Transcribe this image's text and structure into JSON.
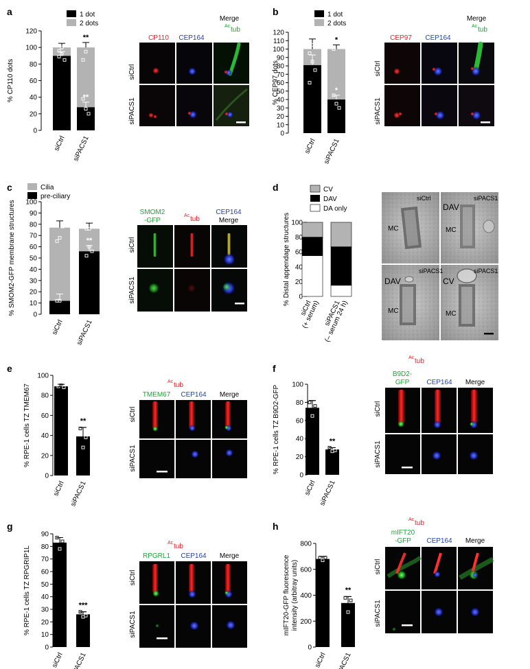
{
  "colors": {
    "red": "#e8202a",
    "blue": "#27439e",
    "green": "#1aa53a",
    "black": "#000000",
    "gray": "#b3b3b3",
    "em_bg": "#a9a9a9"
  },
  "panels": {
    "a": {
      "letter": "a",
      "legend": [
        "1 dot",
        "2 dots"
      ],
      "ylabel": "% CP110 dots",
      "yticks": [
        "0",
        "20",
        "40",
        "60",
        "80",
        "100",
        "120"
      ],
      "categories": [
        "siCtrl",
        "siPACS1"
      ],
      "sig": [
        "**",
        "**"
      ],
      "stain_labels": {
        "c1": "CP110",
        "c2": "CEP164",
        "c3_title": "Merge",
        "c3_sup": "Ac",
        "c3_rest": "tub"
      },
      "row_labels": [
        "siCtrl",
        "siPACS1"
      ]
    },
    "b": {
      "letter": "b",
      "legend": [
        "1 dot",
        "2 dots"
      ],
      "ylabel": "% CEP97 dots",
      "yticks": [
        "0",
        "10",
        "20",
        "30",
        "40",
        "50",
        "60",
        "70",
        "80",
        "90",
        "100",
        "110",
        "120"
      ],
      "categories": [
        "siCtrl",
        "siPACS1"
      ],
      "sig": [
        "*",
        "*"
      ],
      "stain_labels": {
        "c1": "CEP97",
        "c2": "CEP164",
        "c3_title": "Merge",
        "c3_sup": "Ac",
        "c3_rest": "tub"
      },
      "row_labels": [
        "siCtrl",
        "siPACS1"
      ]
    },
    "c": {
      "letter": "c",
      "legend": [
        "Cilia",
        "pre-ciliary"
      ],
      "ylabel": "% SMOM2-GFP membrane structures",
      "yticks": [
        "0",
        "10",
        "20",
        "30",
        "40",
        "50",
        "60",
        "70",
        "80",
        "90",
        "100"
      ],
      "categories": [
        "siCtrl",
        "siPACS1"
      ],
      "sig": [
        "**"
      ],
      "stain_labels": {
        "c1a": "SMOM2",
        "c1b": "-GFP",
        "c2_sup": "Ac",
        "c2_rest": "tub",
        "c3_title": "CEP164",
        "c3_sub": "Merge"
      },
      "row_labels": [
        "siCtrl",
        "siPACS1"
      ]
    },
    "d": {
      "letter": "d",
      "legend": [
        "CV",
        "DAV",
        "DA only"
      ],
      "ylabel": "% Distal appendage structures",
      "yticks": [
        "0",
        "20",
        "40",
        "60",
        "80",
        "100"
      ],
      "categories": [
        "siCtrl (+ serum)",
        "siPACS1 (– serum 24 h)"
      ],
      "cat_lines": [
        [
          "siCtrl",
          "(+ serum)"
        ],
        [
          "siPACS1",
          "(– serum 24 h)"
        ]
      ],
      "em_labels": {
        "tl": "siCtrl",
        "tr": "siPACS1",
        "bl": "siPACS1",
        "br": "siPACS1",
        "mc": "MC",
        "dav": "DAV",
        "cv": "CV"
      }
    },
    "e": {
      "letter": "e",
      "ylabel": "% RPE-1 cells TZ TMEM67",
      "yticks": [
        "0",
        "20",
        "40",
        "60",
        "80",
        "100"
      ],
      "categories": [
        "siCtrl",
        "siPACS1"
      ],
      "sig": [
        "**"
      ],
      "stain_labels": {
        "top_sup": "Ac",
        "top_rest": "tub",
        "c1": "TMEM67",
        "c2": "CEP164",
        "c3": "Merge"
      },
      "row_labels": [
        "siCtrl",
        "siPACS1"
      ]
    },
    "f": {
      "letter": "f",
      "ylabel": "% RPE-1 cells TZ B9D2-GFP",
      "yticks": [
        "0",
        "20",
        "40",
        "60",
        "80",
        "100"
      ],
      "categories": [
        "siCtrl",
        "siPACS1"
      ],
      "sig": [
        "**"
      ],
      "stain_labels": {
        "top_sup": "Ac",
        "top_rest": "tub",
        "c1a": "B9D2-",
        "c1b": "GFP",
        "c2": "CEP164",
        "c3": "Merge"
      },
      "row_labels": [
        "siCtrl",
        "siPACS1"
      ]
    },
    "g": {
      "letter": "g",
      "ylabel": "% RPE-1 cells TZ RPGRIP1L",
      "yticks": [
        "0",
        "10",
        "20",
        "30",
        "40",
        "50",
        "60",
        "70",
        "80",
        "90"
      ],
      "categories": [
        "siCtrl",
        "siPACS1"
      ],
      "sig": [
        "***"
      ],
      "stain_labels": {
        "top_sup": "Ac",
        "top_rest": "tub",
        "c1": "RPGRL1",
        "c2": "CEP164",
        "c3": "Merge"
      },
      "row_labels": [
        "siCtrl",
        "siPACS1"
      ]
    },
    "h": {
      "letter": "h",
      "ylabel": "mIFT20-GFP fluorescence intensity (arbitray units)",
      "ylabel_lines": [
        "mIFT20-GFP fluorescence",
        "intensity (arbitray units)"
      ],
      "yticks": [
        "0",
        "200",
        "400",
        "600",
        "800"
      ],
      "categories": [
        "siCtrl",
        "siPACS1"
      ],
      "sig": [
        "**"
      ],
      "stain_labels": {
        "top_sup": "Ac",
        "top_rest": "tub",
        "c1a": "mIFT20",
        "c1b": "-GFP",
        "c2": "CEP164",
        "c3": "Merge"
      },
      "row_labels": [
        "siCtrl",
        "siPACS1"
      ]
    }
  },
  "chart_data": [
    {
      "panel": "a",
      "type": "bar",
      "stacked": true,
      "categories": [
        "siCtrl",
        "siPACS1"
      ],
      "series": [
        {
          "name": "1 dot",
          "values": [
            90,
            28
          ]
        },
        {
          "name": "2 dots",
          "values": [
            10,
            72
          ]
        }
      ],
      "ylabel": "% CP110 dots",
      "ylim": [
        0,
        120
      ]
    },
    {
      "panel": "b",
      "type": "bar",
      "stacked": true,
      "categories": [
        "siCtrl",
        "siPACS1"
      ],
      "series": [
        {
          "name": "1 dot",
          "values": [
            81,
            40
          ]
        },
        {
          "name": "2 dots",
          "values": [
            19,
            60
          ]
        }
      ],
      "ylabel": "% CEP97 dots",
      "ylim": [
        0,
        120
      ]
    },
    {
      "panel": "c",
      "type": "bar",
      "stacked": true,
      "categories": [
        "siCtrl",
        "siPACS1"
      ],
      "series": [
        {
          "name": "pre-ciliary",
          "values": [
            12,
            56
          ]
        },
        {
          "name": "Cilia",
          "values": [
            65,
            20
          ]
        }
      ],
      "ylabel": "% SMOM2-GFP membrane structures",
      "ylim": [
        0,
        100
      ]
    },
    {
      "panel": "d",
      "type": "bar",
      "stacked": true,
      "categories": [
        "siCtrl (+ serum)",
        "siPACS1 (– serum 24 h)"
      ],
      "series": [
        {
          "name": "DA only",
          "values": [
            55,
            15
          ]
        },
        {
          "name": "DAV",
          "values": [
            25,
            52
          ]
        },
        {
          "name": "CV",
          "values": [
            20,
            33
          ]
        }
      ],
      "ylabel": "% Distal appendage structures",
      "ylim": [
        0,
        100
      ]
    },
    {
      "panel": "e",
      "type": "bar",
      "categories": [
        "siCtrl",
        "siPACS1"
      ],
      "values": [
        89,
        39
      ],
      "ylabel": "% RPE-1 cells TZ TMEM67",
      "ylim": [
        0,
        100
      ]
    },
    {
      "panel": "f",
      "type": "bar",
      "categories": [
        "siCtrl",
        "siPACS1"
      ],
      "values": [
        74,
        28
      ],
      "ylabel": "% RPE-1 cells TZ B9D2-GFP",
      "ylim": [
        0,
        100
      ]
    },
    {
      "panel": "g",
      "type": "bar",
      "categories": [
        "siCtrl",
        "siPACS1"
      ],
      "values": [
        83,
        26
      ],
      "ylabel": "% RPE-1 cells TZ RPGRIP1L",
      "ylim": [
        0,
        90
      ]
    },
    {
      "panel": "h",
      "type": "bar",
      "categories": [
        "siCtrl",
        "siPACS1"
      ],
      "values": [
        680,
        340
      ],
      "ylabel": "mIFT20-GFP fluorescence intensity (arbitray units)",
      "ylim": [
        0,
        800
      ]
    }
  ]
}
